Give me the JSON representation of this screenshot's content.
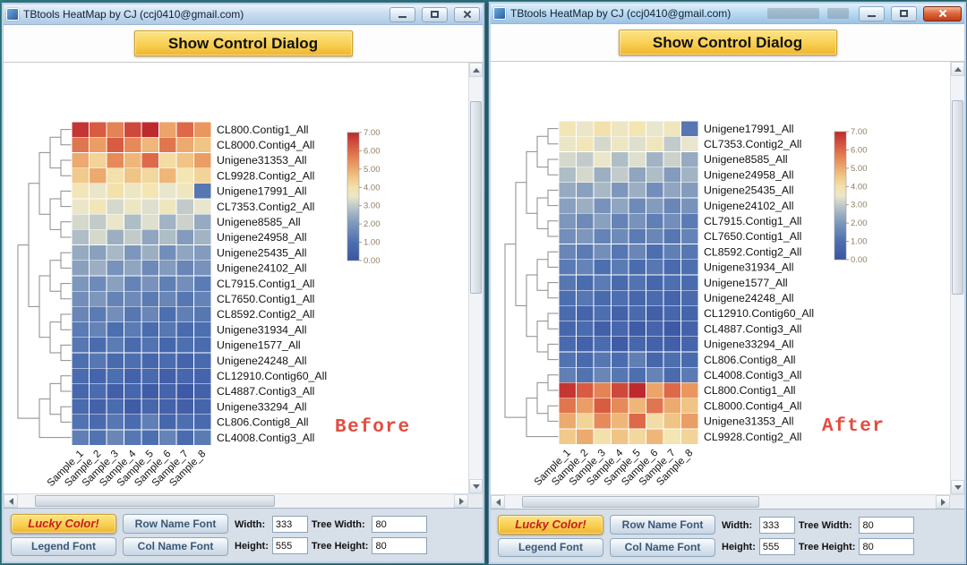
{
  "ui": {
    "window_title": "TBtools HeatMap by CJ (ccj0410@gmail.com)",
    "show_control_dialog": "Show Control Dialog",
    "controls": {
      "lucky_color": "Lucky Color!",
      "legend_font": "Legend Font",
      "row_name_font": "Row Name Font",
      "col_name_font": "Col Name Font",
      "width_label": "Width:",
      "width_value": "333",
      "height_label": "Height:",
      "height_value": "555",
      "tree_width_label": "Tree Width:",
      "tree_width_value": "80",
      "tree_height_label": "Tree Height:",
      "tree_height_value": "80"
    }
  },
  "chart_data": [
    {
      "type": "heatmap",
      "annotation": "Before",
      "value_range": [
        0,
        7
      ],
      "legend_ticks": [
        "7.00",
        "6.00",
        "5.00",
        "4.00",
        "3.00",
        "2.00",
        "1.00",
        "0.00"
      ],
      "colormap": "red-yellow-blue",
      "columns": [
        "Sample_1",
        "Sample_2",
        "Sample_3",
        "Sample_4",
        "Sample_5",
        "Sample_6",
        "Sample_7",
        "Sample_8"
      ],
      "rows": [
        "CL800.Contig1_All",
        "CL8000.Contig4_All",
        "Unigene31353_All",
        "CL9928.Contig2_All",
        "Unigene17991_All",
        "CL7353.Contig2_All",
        "Unigene8585_All",
        "Unigene24958_All",
        "Unigene25435_All",
        "Unigene24102_All",
        "CL7915.Contig1_All",
        "CL7650.Contig1_All",
        "CL8592.Contig2_All",
        "Unigene31934_All",
        "Unigene1577_All",
        "Unigene24248_All",
        "CL12910.Contig60_All",
        "CL4887.Contig3_All",
        "Unigene33294_All",
        "CL806.Contig8_All",
        "CL4008.Contig3_All"
      ],
      "values": [
        [
          6.8,
          6.2,
          5.6,
          6.5,
          7.0,
          5.1,
          6.0,
          5.3
        ],
        [
          5.8,
          5.2,
          6.2,
          5.5,
          4.8,
          5.8,
          5.0,
          4.6
        ],
        [
          5.0,
          4.3,
          5.5,
          4.8,
          6.0,
          4.1,
          4.6,
          5.2
        ],
        [
          4.5,
          5.0,
          4.0,
          4.6,
          4.2,
          4.8,
          3.9,
          4.3
        ],
        [
          3.8,
          3.5,
          4.0,
          3.6,
          3.9,
          3.4,
          3.7,
          1.2
        ],
        [
          3.5,
          3.8,
          3.2,
          3.6,
          3.3,
          3.7,
          3.0,
          3.4
        ],
        [
          3.2,
          3.0,
          3.5,
          2.8,
          3.3,
          2.6,
          3.1,
          2.4
        ],
        [
          2.8,
          3.2,
          2.5,
          3.0,
          2.3,
          2.8,
          2.1,
          2.6
        ],
        [
          2.4,
          2.2,
          2.7,
          2.0,
          2.5,
          1.8,
          2.3,
          2.1
        ],
        [
          2.2,
          2.5,
          1.9,
          2.3,
          1.7,
          2.1,
          1.6,
          1.9
        ],
        [
          2.0,
          1.7,
          2.2,
          1.5,
          1.9,
          1.4,
          1.8,
          1.3
        ],
        [
          1.8,
          2.0,
          1.5,
          1.7,
          1.3,
          1.6,
          1.2,
          1.5
        ],
        [
          1.6,
          1.3,
          1.8,
          1.2,
          1.6,
          1.0,
          1.4,
          1.2
        ],
        [
          1.3,
          1.5,
          1.0,
          1.3,
          0.9,
          1.2,
          0.8,
          1.0
        ],
        [
          1.2,
          0.9,
          1.3,
          0.8,
          1.1,
          0.7,
          1.0,
          0.9
        ],
        [
          1.0,
          1.2,
          0.8,
          1.0,
          0.7,
          0.9,
          0.6,
          0.8
        ],
        [
          0.9,
          0.6,
          1.0,
          0.5,
          0.8,
          0.4,
          0.7,
          0.6
        ],
        [
          0.7,
          0.9,
          0.4,
          0.7,
          0.3,
          0.6,
          0.2,
          0.5
        ],
        [
          0.8,
          0.5,
          0.9,
          0.3,
          0.7,
          0.5,
          0.4,
          0.6
        ],
        [
          1.1,
          0.8,
          1.2,
          0.9,
          1.4,
          0.7,
          1.0,
          0.8
        ],
        [
          1.4,
          1.1,
          1.6,
          1.2,
          1.0,
          1.5,
          0.9,
          1.3
        ]
      ]
    },
    {
      "type": "heatmap",
      "annotation": "After",
      "value_range": [
        0,
        7
      ],
      "legend_ticks": [
        "7.00",
        "6.00",
        "5.00",
        "4.00",
        "3.00",
        "2.00",
        "1.00",
        "0.00"
      ],
      "colormap": "red-yellow-blue",
      "columns": [
        "Sample_1",
        "Sample_2",
        "Sample_3",
        "Sample_4",
        "Sample_5",
        "Sample_6",
        "Sample_7",
        "Sample_8"
      ],
      "rows": [
        "Unigene17991_All",
        "CL7353.Contig2_All",
        "Unigene8585_All",
        "Unigene24958_All",
        "Unigene25435_All",
        "Unigene24102_All",
        "CL7915.Contig1_All",
        "CL7650.Contig1_All",
        "CL8592.Contig2_All",
        "Unigene31934_All",
        "Unigene1577_All",
        "Unigene24248_All",
        "CL12910.Contig60_All",
        "CL4887.Contig3_All",
        "Unigene33294_All",
        "CL806.Contig8_All",
        "CL4008.Contig3_All",
        "CL800.Contig1_All",
        "CL8000.Contig4_All",
        "Unigene31353_All",
        "CL9928.Contig2_All"
      ],
      "values": [
        [
          3.8,
          3.5,
          4.0,
          3.6,
          3.9,
          3.4,
          3.7,
          1.2
        ],
        [
          3.5,
          3.8,
          3.2,
          3.6,
          3.3,
          3.7,
          3.0,
          3.4
        ],
        [
          3.2,
          3.0,
          3.5,
          2.8,
          3.3,
          2.6,
          3.1,
          2.4
        ],
        [
          2.8,
          3.2,
          2.5,
          3.0,
          2.3,
          2.8,
          2.1,
          2.6
        ],
        [
          2.4,
          2.2,
          2.7,
          2.0,
          2.5,
          1.8,
          2.3,
          2.1
        ],
        [
          2.2,
          2.5,
          1.9,
          2.3,
          1.7,
          2.1,
          1.6,
          1.9
        ],
        [
          2.0,
          1.7,
          2.2,
          1.5,
          1.9,
          1.4,
          1.8,
          1.3
        ],
        [
          1.8,
          2.0,
          1.5,
          1.7,
          1.3,
          1.6,
          1.2,
          1.5
        ],
        [
          1.6,
          1.3,
          1.8,
          1.2,
          1.6,
          1.0,
          1.4,
          1.2
        ],
        [
          1.3,
          1.5,
          1.0,
          1.3,
          0.9,
          1.2,
          0.8,
          1.0
        ],
        [
          1.2,
          0.9,
          1.3,
          0.8,
          1.1,
          0.7,
          1.0,
          0.9
        ],
        [
          1.0,
          1.2,
          0.8,
          1.0,
          0.7,
          0.9,
          0.6,
          0.8
        ],
        [
          0.9,
          0.6,
          1.0,
          0.5,
          0.8,
          0.4,
          0.7,
          0.6
        ],
        [
          0.7,
          0.9,
          0.4,
          0.7,
          0.3,
          0.6,
          0.2,
          0.5
        ],
        [
          0.8,
          0.5,
          0.9,
          0.3,
          0.7,
          0.5,
          0.4,
          0.6
        ],
        [
          1.1,
          0.8,
          1.2,
          0.9,
          1.4,
          0.7,
          1.0,
          0.8
        ],
        [
          1.4,
          1.1,
          1.6,
          1.2,
          1.0,
          1.5,
          0.9,
          1.3
        ],
        [
          6.8,
          6.2,
          5.6,
          6.5,
          7.0,
          5.1,
          6.0,
          5.3
        ],
        [
          5.8,
          5.2,
          6.2,
          5.5,
          4.8,
          5.8,
          5.0,
          4.6
        ],
        [
          5.0,
          4.3,
          5.5,
          4.8,
          6.0,
          4.1,
          4.6,
          5.2
        ],
        [
          4.5,
          5.0,
          4.0,
          4.6,
          4.2,
          4.8,
          3.9,
          4.3
        ]
      ]
    }
  ]
}
